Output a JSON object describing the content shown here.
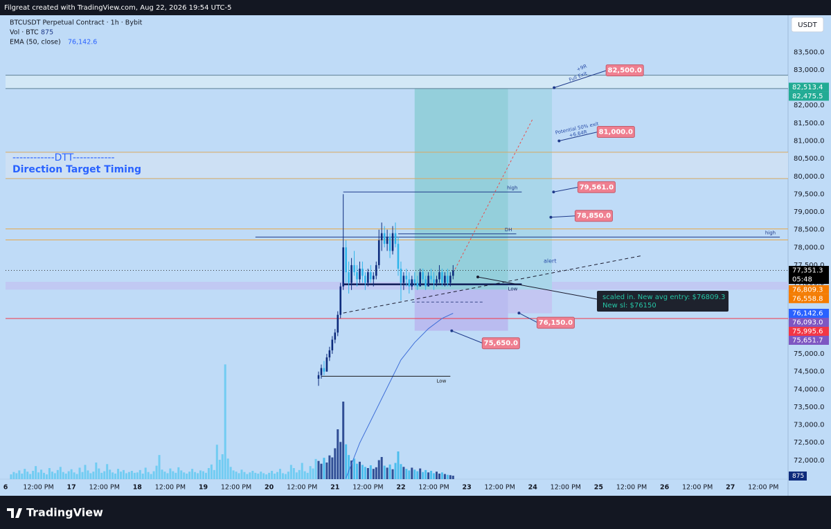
{
  "header": {
    "title": "Filgreat created with TradingView.com, Aug 22, 2026 19:54 UTC-5"
  },
  "chart_data": {
    "type": "candlestick",
    "symbol": "BTCUSDT Perpetual Contract · 1h · Bybit",
    "volume_legend": "Vol · BTC",
    "volume_legend_value": 875,
    "ema_legend": "EMA (50, close)",
    "ema_legend_value": {
      "value": 76142.6,
      "label": "76,142.6"
    },
    "currency": "USDT",
    "up_color": "#0d2b7c",
    "down_color": "#2fb5ea",
    "x": [
      90,
      91,
      92,
      93,
      94,
      95,
      96,
      97,
      98,
      99,
      100,
      101,
      102,
      103,
      104,
      105,
      106,
      107,
      108,
      109,
      110,
      111,
      112,
      113,
      114,
      115,
      116,
      117,
      118,
      119,
      120,
      121,
      122,
      123,
      124,
      125,
      126,
      127,
      128,
      129,
      130,
      131,
      132,
      133,
      134,
      135,
      136,
      137,
      138,
      139
    ],
    "open": [
      74300,
      74400,
      74600,
      74500,
      74900,
      75100,
      75400,
      75600,
      76100,
      76900,
      78000,
      77300,
      77000,
      77500,
      77300,
      77100,
      77400,
      77200,
      77000,
      77300,
      77100,
      77200,
      77500,
      78200,
      78400,
      78100,
      78300,
      77900,
      78400,
      78100,
      77400,
      77000,
      77200,
      77100,
      76900,
      77100,
      77000,
      76900,
      77300,
      77100,
      76900,
      77200,
      77100,
      77000,
      77100,
      77300,
      77000,
      77200,
      77000,
      77200
    ],
    "high": [
      74500,
      74700,
      74800,
      75000,
      75200,
      75500,
      75700,
      76200,
      77000,
      79500,
      78200,
      77600,
      77700,
      77900,
      77500,
      77600,
      77600,
      77300,
      77400,
      77500,
      77300,
      77600,
      78500,
      78700,
      78600,
      78500,
      78400,
      78600,
      78700,
      78300,
      77600,
      77300,
      77400,
      77300,
      77200,
      77300,
      77200,
      77400,
      77400,
      77200,
      77300,
      77400,
      77300,
      77200,
      77500,
      77400,
      77300,
      77400,
      77300,
      77500
    ],
    "low": [
      74100,
      74300,
      74400,
      74500,
      74800,
      75000,
      75300,
      75500,
      76000,
      76800,
      77000,
      76700,
      76800,
      77200,
      76900,
      77000,
      77000,
      76800,
      76900,
      77000,
      76900,
      77100,
      77400,
      77900,
      78000,
      77900,
      77700,
      77800,
      78000,
      77200,
      76500,
      76800,
      76900,
      76700,
      76800,
      76900,
      76800,
      76900,
      77000,
      76800,
      76900,
      77000,
      76800,
      76900,
      77000,
      76900,
      76900,
      76900,
      76900,
      77100
    ],
    "close": [
      74400,
      74600,
      74500,
      74900,
      75100,
      75400,
      75600,
      76100,
      76900,
      78000,
      77300,
      77000,
      77500,
      77300,
      77100,
      77400,
      77200,
      77000,
      77300,
      77100,
      77200,
      77500,
      78200,
      78400,
      78100,
      78300,
      77900,
      78400,
      78100,
      77400,
      77000,
      77200,
      77100,
      76900,
      77100,
      77000,
      76900,
      77300,
      77100,
      76900,
      77200,
      77100,
      77000,
      77100,
      77300,
      77000,
      77200,
      77000,
      77200,
      77351.3
    ],
    "volume": {
      "color": "#5ec8f0",
      "x": [
        -22,
        -21,
        -20,
        -19,
        -18,
        -17,
        -16,
        -15,
        -14,
        -13,
        -12,
        -11,
        -10,
        -9,
        -8,
        -7,
        -6,
        -5,
        -4,
        -3,
        -2,
        -1,
        0,
        1,
        2,
        3,
        4,
        5,
        6,
        7,
        8,
        9,
        10,
        11,
        12,
        13,
        14,
        15,
        16,
        17,
        18,
        19,
        20,
        21,
        22,
        23,
        24,
        25,
        26,
        27,
        28,
        29,
        30,
        31,
        32,
        33,
        34,
        35,
        36,
        37,
        38,
        39,
        40,
        41,
        42,
        43,
        44,
        45,
        46,
        47,
        48,
        49,
        50,
        51,
        52,
        53,
        54,
        55,
        56,
        57,
        58,
        59,
        60,
        61,
        62,
        63,
        64,
        65,
        66,
        67,
        68,
        69,
        70,
        71,
        72,
        73,
        74,
        75,
        76,
        77,
        78,
        79,
        80,
        81,
        82,
        83,
        84,
        85,
        86,
        87,
        88,
        89,
        90,
        91,
        92,
        93,
        94,
        95,
        96,
        97,
        98,
        99,
        100,
        101,
        102,
        103,
        104,
        105,
        106,
        107,
        108,
        109,
        110,
        111,
        112,
        113,
        114,
        115,
        116,
        117,
        118,
        119,
        120,
        121,
        122,
        123,
        124,
        125,
        126,
        127,
        128,
        129,
        130,
        131,
        132,
        133,
        134,
        135,
        136,
        137,
        138,
        139
      ],
      "values": [
        1200,
        1800,
        1500,
        2200,
        1400,
        2600,
        1900,
        1300,
        2100,
        3300,
        1700,
        2400,
        1600,
        1200,
        2800,
        1900,
        1500,
        2300,
        3100,
        1800,
        1400,
        2000,
        2500,
        1700,
        1300,
        2900,
        1800,
        3600,
        2200,
        1500,
        1900,
        4200,
        2700,
        1600,
        2000,
        3800,
        2400,
        1700,
        1400,
        2600,
        1900,
        2300,
        1500,
        1800,
        2100,
        1600,
        1700,
        2300,
        1400,
        2900,
        1800,
        1300,
        2000,
        3400,
        6100,
        2400,
        1900,
        1500,
        2700,
        2000,
        1600,
        3000,
        2200,
        1700,
        1400,
        1900,
        2600,
        1800,
        1500,
        2200,
        2000,
        1600,
        2800,
        3700,
        2300,
        8700,
        4900,
        6300,
        29000,
        5200,
        3100,
        2200,
        1900,
        1500,
        2400,
        1800,
        1300,
        1700,
        2100,
        1600,
        1400,
        1900,
        1500,
        1200,
        1600,
        2100,
        1400,
        1800,
        2600,
        1500,
        1300,
        1900,
        3600,
        2800,
        1700,
        2300,
        4100,
        2000,
        1600,
        3300,
        2700,
        5100,
        4600,
        3900,
        5400,
        4200,
        6000,
        5500,
        7800,
        12600,
        9400,
        19600,
        8800,
        6100,
        4700,
        5200,
        3900,
        4400,
        3600,
        3100,
        2800,
        3500,
        2600,
        3000,
        4800,
        5600,
        3400,
        2900,
        3700,
        2500,
        4100,
        7000,
        3800,
        3100,
        2600,
        2200,
        2900,
        2400,
        2000,
        2700,
        1800,
        2300,
        1700,
        2100,
        1500,
        1900,
        1400,
        1700,
        1300,
        1100,
        1000,
        875
      ]
    },
    "vlim": [
      0,
      35000
    ],
    "ema": {
      "color": "#3f6fd8",
      "x": [
        100,
        105,
        110,
        115,
        120,
        125,
        130,
        135,
        139
      ],
      "values": [
        71500,
        72490,
        73270,
        74050,
        74830,
        75320,
        75710,
        76000,
        76142.6
      ]
    },
    "xlim": [
      -24,
      261
    ],
    "xticks": [
      {
        "value": -24,
        "label": "6"
      },
      {
        "value": -12,
        "label": "12:00 PM"
      },
      {
        "value": 0,
        "label": "17"
      },
      {
        "value": 12,
        "label": "12:00 PM"
      },
      {
        "value": 24,
        "label": "18"
      },
      {
        "value": 36,
        "label": "12:00 PM"
      },
      {
        "value": 48,
        "label": "19"
      },
      {
        "value": 60,
        "label": "12:00 PM"
      },
      {
        "value": 72,
        "label": "20"
      },
      {
        "value": 84,
        "label": "12:00 PM"
      },
      {
        "value": 96,
        "label": "21"
      },
      {
        "value": 108,
        "label": "12:00 PM"
      },
      {
        "value": 120,
        "label": "22"
      },
      {
        "value": 132,
        "label": "12:00 PM"
      },
      {
        "value": 144,
        "label": "23"
      },
      {
        "value": 156,
        "label": "12:00 PM"
      },
      {
        "value": 168,
        "label": "24"
      },
      {
        "value": 180,
        "label": "12:00 PM"
      },
      {
        "value": 192,
        "label": "25"
      },
      {
        "value": 204,
        "label": "12:00 PM"
      },
      {
        "value": 216,
        "label": "26"
      },
      {
        "value": 228,
        "label": "12:00 PM"
      },
      {
        "value": 240,
        "label": "27"
      },
      {
        "value": 252,
        "label": "12:00 PM"
      }
    ],
    "ylim": [
      71470,
      84580
    ],
    "yticks": [
      {
        "value": 72000,
        "label": "72,000.0"
      },
      {
        "value": 72500,
        "label": "72,500.0"
      },
      {
        "value": 73000,
        "label": "73,000.0"
      },
      {
        "value": 73500,
        "label": "73,500.0"
      },
      {
        "value": 74000,
        "label": "74,000.0"
      },
      {
        "value": 74500,
        "label": "74,500.0"
      },
      {
        "value": 75000,
        "label": "75,000.0"
      },
      {
        "value": 75500,
        "label": "75,500.0"
      },
      {
        "value": 76000,
        "label": "76,000.0"
      },
      {
        "value": 76500,
        "label": "76,500.0"
      },
      {
        "value": 77000,
        "label": "77,000.0"
      },
      {
        "value": 77500,
        "label": "77,500.0"
      },
      {
        "value": 78000,
        "label": "78,000.0"
      },
      {
        "value": 78500,
        "label": "78,500.0"
      },
      {
        "value": 79000,
        "label": "79,000.0"
      },
      {
        "value": 79500,
        "label": "79,500.0"
      },
      {
        "value": 80000,
        "label": "80,000.0"
      },
      {
        "value": 80500,
        "label": "80,500.0"
      },
      {
        "value": 81000,
        "label": "81,000.0"
      },
      {
        "value": 81500,
        "label": "81,500.0"
      },
      {
        "value": 82000,
        "label": "82,000.0"
      },
      {
        "value": 82500,
        "label": "82,500.0"
      },
      {
        "value": 83000,
        "label": "83,000.0"
      },
      {
        "value": 83500,
        "label": "83,500.0"
      }
    ],
    "grid": false,
    "price_labels": [
      {
        "value": 82513.4,
        "label": "82,513.4",
        "color": "#22ab94"
      },
      {
        "value": 82475.5,
        "label": "82,475.5",
        "color": "#22ab94"
      },
      {
        "value": 77351.3,
        "label": "77,351.3",
        "color": "#000000"
      },
      {
        "value": 76809.3,
        "label": "76,809.3",
        "color": "#f57c00"
      },
      {
        "value": 76558.8,
        "label": "76,558.8",
        "color": "#f57c00"
      },
      {
        "value": 76142.6,
        "label": "76,142.6",
        "color": "#2962ff"
      },
      {
        "value": 76093.0,
        "label": "76,093.0",
        "color": "#7e57c2"
      },
      {
        "value": 75995.6,
        "label": "75,995.6",
        "color": "#f23645"
      },
      {
        "value": 75651.7,
        "label": "75,651.7",
        "color": "#7e57c2"
      }
    ],
    "countdown": "05:48",
    "zones": [
      {
        "top": 82850,
        "bottom": 82475.5,
        "color": "#d3e8f6"
      },
      {
        "top": 80680,
        "bottom": 79940,
        "color": "#cde0f4"
      },
      {
        "top": 77030,
        "bottom": 76810,
        "color": "#c1c9f3"
      },
      {
        "x": [
          159,
          175
        ],
        "top": 82475.5,
        "bottom": 76809.3,
        "color": "#a9d6ea"
      },
      {
        "x": [
          159,
          175
        ],
        "top": 76809.3,
        "bottom": 76142.6,
        "color": "#c3c6f2"
      }
    ],
    "position": {
      "x": [
        125,
        159
      ],
      "entry": 76809.3,
      "target": 82475.5,
      "stop": 75651.7,
      "target_color": "#8ccdd6",
      "stop_color": "#b8b6ee"
    },
    "hlines": [
      {
        "value": 82850,
        "color": "#5d7f95"
      },
      {
        "value": 82475.5,
        "color": "#5d7f95"
      },
      {
        "value": 80680,
        "color": "#d9a860"
      },
      {
        "value": 79940,
        "color": "#d9a860"
      },
      {
        "value": 78520,
        "color": "#e8a848"
      },
      {
        "value": 78210,
        "color": "#e8a848"
      },
      {
        "value": 77351.3,
        "color": "#333333",
        "dash": "1 3"
      },
      {
        "value": 75995.6,
        "color": "#f23645"
      }
    ],
    "levels": [
      {
        "label": "high",
        "value": 79561,
        "x": [
          99,
          164
        ],
        "color": "#1f3a8a"
      },
      {
        "label": "DH",
        "value": 78380,
        "x": [
          119,
          162
        ],
        "color": "#1f3a8a"
      },
      {
        "label": "high",
        "value": 78290,
        "x": [
          67,
          258
        ],
        "color": "#1f3a8a"
      },
      {
        "label": "Low",
        "value": 76960,
        "x": [
          99,
          164
        ],
        "color": "#0d1a55"
      },
      {
        "label": "Low",
        "value": 74370,
        "x": [
          91,
          138
        ],
        "color": "#1a1a1a"
      }
    ],
    "trendlines": [
      {
        "x": [
          99,
          208
        ],
        "values": [
          76150,
          77770
        ],
        "color": "#1a1a2e",
        "dash": "5 4"
      },
      {
        "x": [
          139,
          168
        ],
        "values": [
          77280,
          81620
        ],
        "color": "#e85050",
        "dash": "3 3"
      },
      {
        "x": [
          124,
          150
        ],
        "values": [
          76460,
          76460
        ],
        "color": "#3a4a8a",
        "dash": "4 3"
      }
    ],
    "callouts": [
      {
        "value": 82500,
        "label": "82,500.0",
        "x": 175.8
      },
      {
        "value": 81000,
        "label": "81,000.0",
        "x": 177.6
      },
      {
        "value": 79561,
        "label": "79,561.0",
        "x": 175.6
      },
      {
        "value": 78850,
        "label": "78,850.0",
        "x": 174.6
      },
      {
        "value": 76150,
        "label": "76,150.0",
        "x": 163
      },
      {
        "value": 75650,
        "label": "75,650.0",
        "x": 138.5
      }
    ],
    "callout_color": "#ef7f90",
    "annotations": {
      "dtt_line": "------------DTT------------",
      "dtt_title": "Direction Target Timing",
      "r9": "+9R",
      "full_exit": "Full Exit",
      "partial_exit": "Potential 50% exit",
      "r664": "+6.64R",
      "alert": "alert"
    },
    "tooltip": [
      "scaled in. New avg entry: $76809.3",
      "New sl: $76150"
    ]
  },
  "footer": {
    "logo": "TradingView"
  }
}
